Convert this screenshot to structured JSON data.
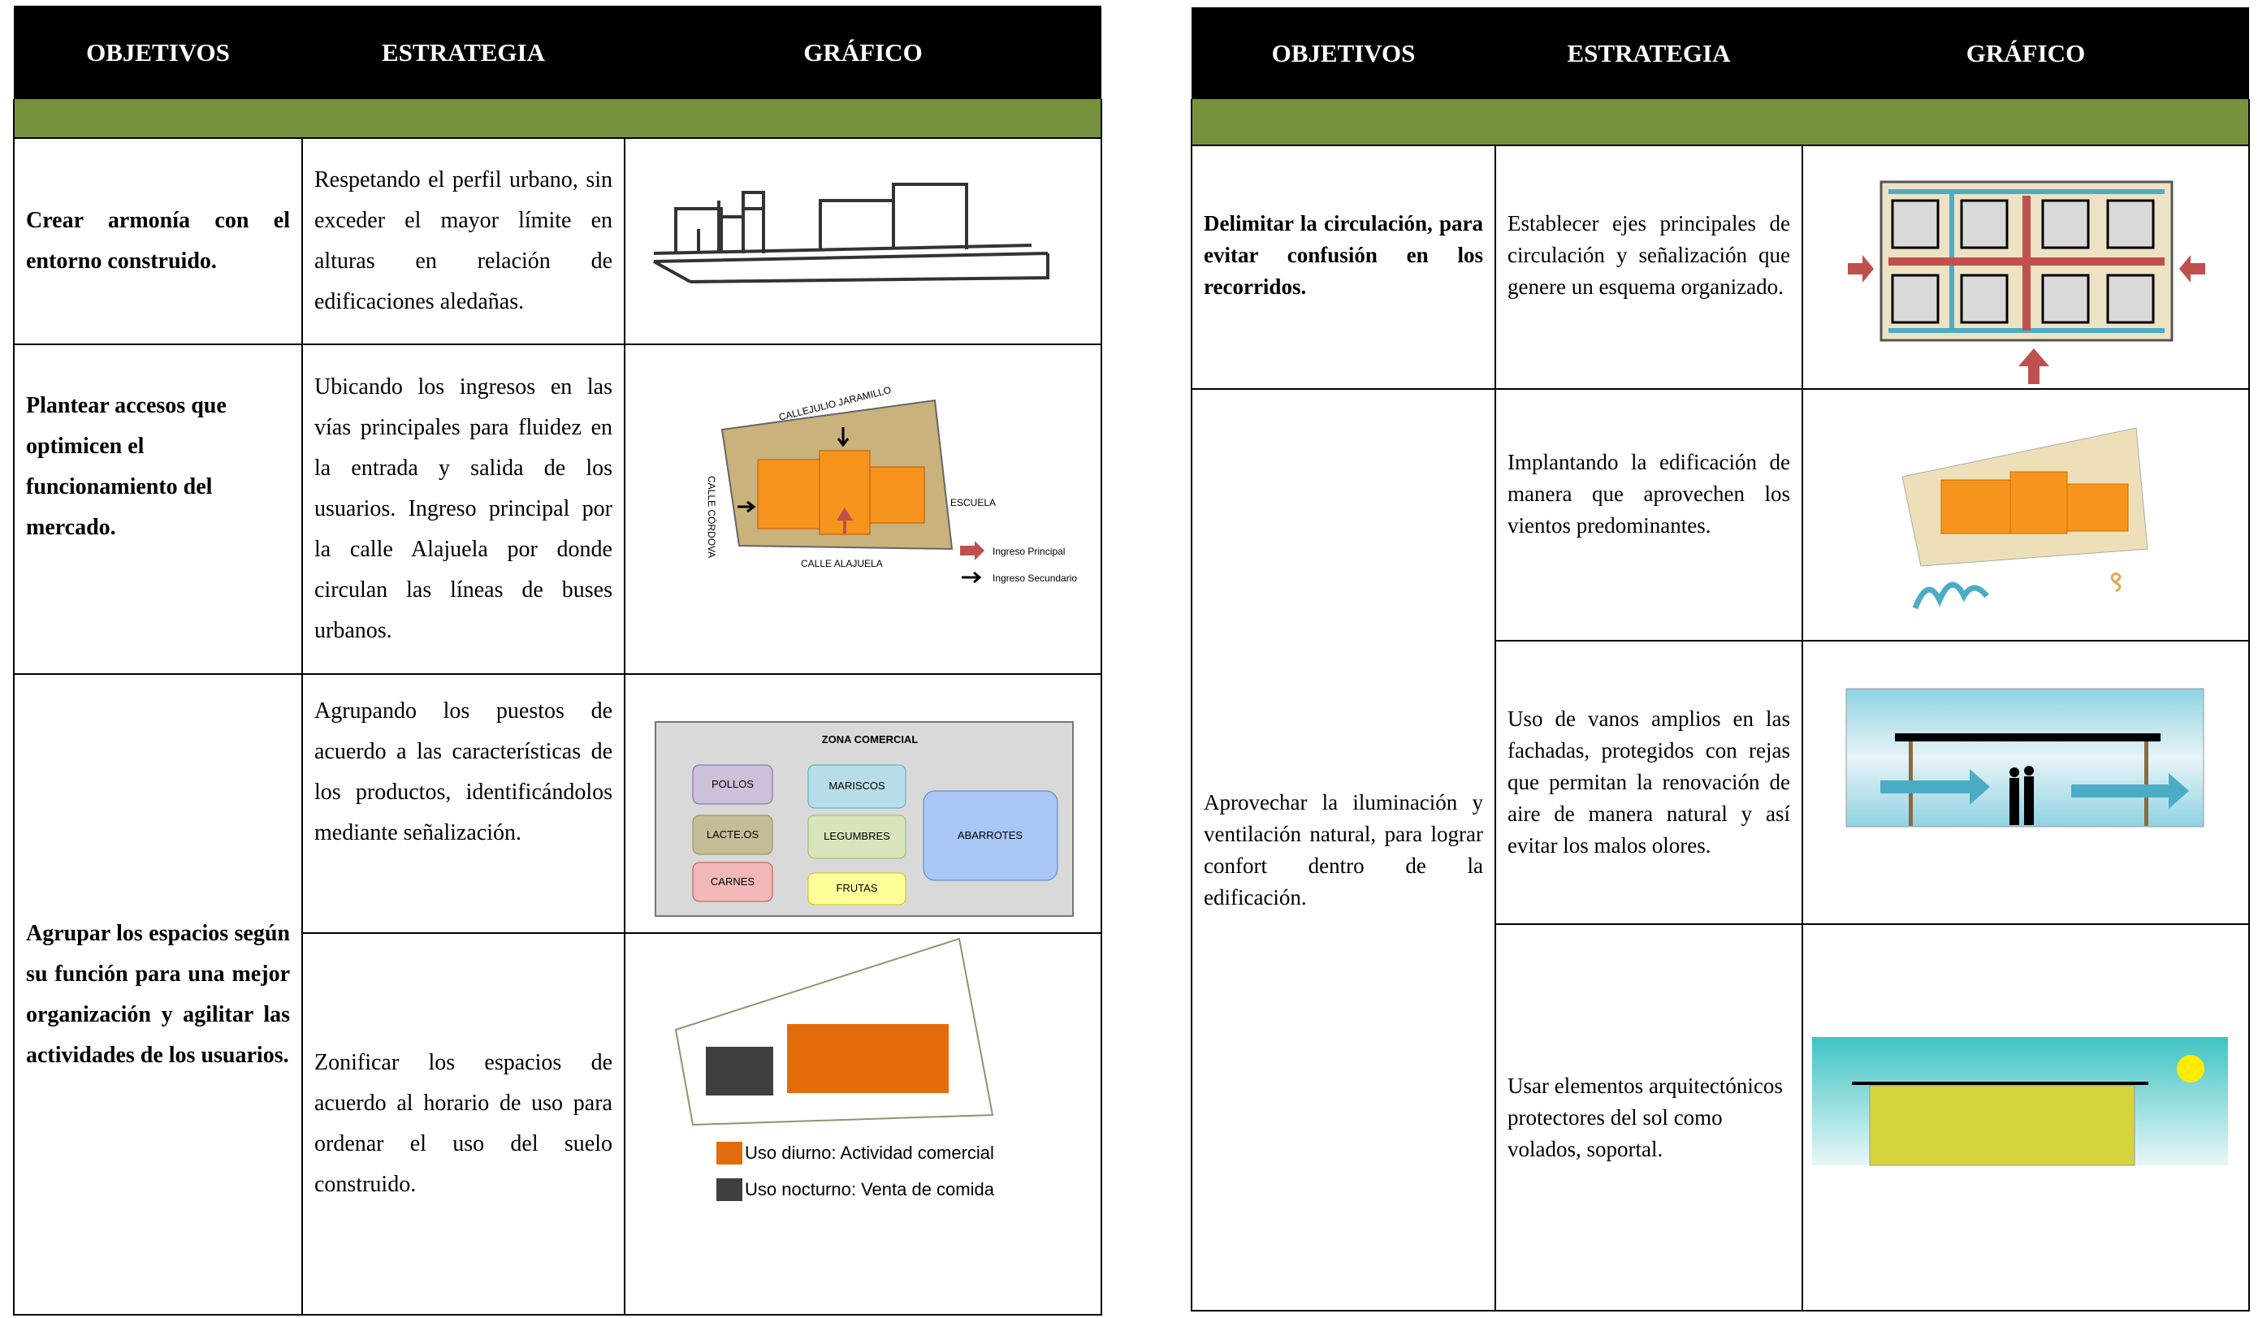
{
  "left_table": {
    "headers": [
      "OBJETIVOS",
      "ESTRATEGIA",
      "GRÁFICO"
    ],
    "rows": [
      {
        "objective": "Crear armonía con el entorno construido.",
        "strategies": [
          "Respetando el perfil urbano, sin exceder el mayor límite en alturas en relación de edificaciones aledañas."
        ]
      },
      {
        "objective": "Plantear accesos que optimicen el funcionamiento del mercado.",
        "strategies": [
          "Ubicando los ingresos en las vías principales para fluidez en la entrada y salida de los usuarios. Ingreso principal por la calle Alajuela por donde circulan las líneas de buses urbanos."
        ]
      },
      {
        "objective": "Agrupar los espacios según su función para una mejor organización y agilitar las actividades de los usuarios.",
        "strategies": [
          "Agrupando los puestos de acuerdo a las características de los productos, identificándolos mediante señalización.",
          "Zonificar los espacios de acuerdo al horario de uso para ordenar el uso del suelo construido."
        ]
      }
    ]
  },
  "right_table": {
    "headers": [
      "OBJETIVOS",
      "ESTRATEGIA",
      "GRÁFICO"
    ],
    "rows": [
      {
        "objective": "Delimitar la circulación, para evitar confusión en los recorridos.",
        "strategies": [
          "Establecer ejes principales de circulación y señalización que genere un esquema organizado."
        ]
      },
      {
        "objective": "Aprovechar la iluminación y ventilación natural, para lograr confort dentro de la edificación.",
        "strategies": [
          "Implantando la edificación de manera que aprovechen los vientos predominantes.",
          "Uso de vanos amplios en las fachadas, protegidos con rejas que permitan la renovación de aire de manera natural y así evitar los malos olores.",
          "Usar elementos arquitectónicos protectores del sol como volados, soportal."
        ]
      }
    ]
  },
  "graphics": {
    "site_plan": {
      "street_north": "CALLEJULIO JARAMILLO",
      "street_west": "CALLE CÓRDOVA",
      "street_south": "CALLE ALAJUELA",
      "east": "ESCUELA",
      "legend": [
        "Ingreso Principal",
        "Ingreso Secundario"
      ]
    },
    "zoning": {
      "title": "ZONA COMERCIAL",
      "zones": [
        "POLLOS",
        "MARISCOS",
        "LACTE.OS",
        "LEGUMBRES",
        "CARNES",
        "FRUTAS",
        "ABARROTES"
      ]
    },
    "schedule": {
      "legend": [
        "Uso diurno: Actividad comercial",
        "Uso nocturno: Venta de comida"
      ]
    }
  }
}
